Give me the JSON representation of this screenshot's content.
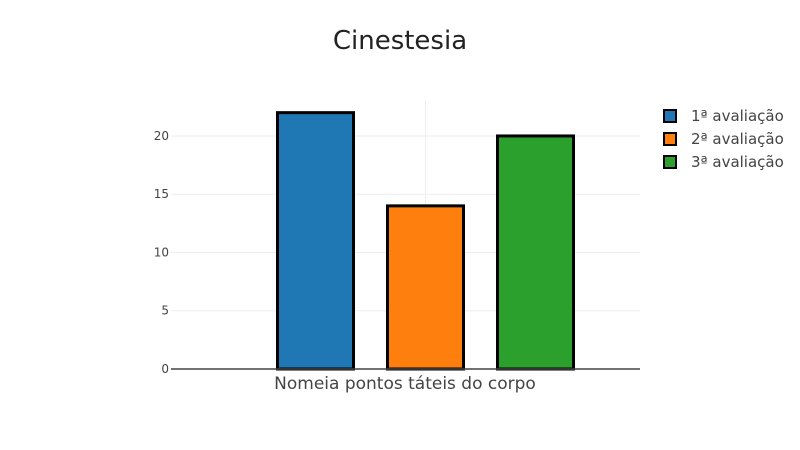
{
  "chart_data": {
    "type": "bar",
    "title": "Cinestesia",
    "xlabel": "",
    "ylabel": "",
    "categories": [
      "Nomeia pontos táteis do corpo"
    ],
    "series": [
      {
        "name": "1ª avaliação",
        "values": [
          22
        ],
        "color": "#1f77b4"
      },
      {
        "name": "2ª avaliação",
        "values": [
          14
        ],
        "color": "#ff7f0e"
      },
      {
        "name": "3ª avaliação",
        "values": [
          20
        ],
        "color": "#2ca02c"
      }
    ],
    "yticks": [
      0,
      5,
      10,
      15,
      20
    ],
    "ylim": [
      0,
      23
    ],
    "grid": true,
    "legend_position": "top-right"
  }
}
